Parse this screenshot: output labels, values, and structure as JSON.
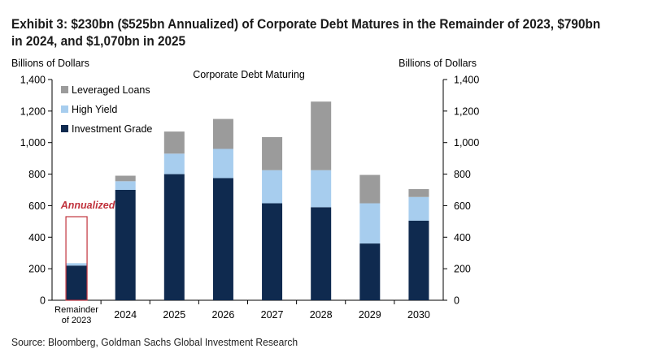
{
  "exhibit_title": "Exhibit 3: $230bn ($525bn Annualized) of Corporate Debt Matures in the Remainder of 2023, $790bn in 2024, and $1,070bn in 2025",
  "source": "Source: Bloomberg, Goldman Sachs Global Investment Research",
  "chart_data": {
    "type": "bar",
    "stacked": true,
    "title": "Corporate  Debt Maturing",
    "ylabel_left": "Billions of Dollars",
    "ylabel_right": "Billions of Dollars",
    "ylim": [
      0,
      1400
    ],
    "yticks": [
      0,
      200,
      400,
      600,
      800,
      1000,
      1200,
      1400
    ],
    "ytick_labels": [
      "0",
      "200",
      "400",
      "600",
      "800",
      "1,000",
      "1,200",
      "1,400"
    ],
    "categories": [
      "Remainder of 2023",
      "2024",
      "2025",
      "2026",
      "2027",
      "2028",
      "2029",
      "2030"
    ],
    "category_label_lines": [
      [
        "Remainder",
        "of 2023"
      ],
      [
        "2024"
      ],
      [
        "2025"
      ],
      [
        "2026"
      ],
      [
        "2027"
      ],
      [
        "2028"
      ],
      [
        "2029"
      ],
      [
        "2030"
      ]
    ],
    "series": [
      {
        "name": "Investment Grade",
        "color": "#0f2a4f",
        "values": [
          220,
          700,
          800,
          775,
          615,
          590,
          360,
          505
        ]
      },
      {
        "name": "High Yield",
        "color": "#a7cdee",
        "values": [
          15,
          55,
          130,
          185,
          210,
          235,
          255,
          150
        ]
      },
      {
        "name": "Leveraged Loans",
        "color": "#9b9b9b",
        "values": [
          0,
          35,
          140,
          190,
          210,
          435,
          180,
          50
        ]
      }
    ],
    "legend_position": "top-left",
    "annotation": {
      "text": "Annualized",
      "category": "Remainder of 2023",
      "value": 530,
      "color": "#c0323c"
    },
    "grid": false
  }
}
